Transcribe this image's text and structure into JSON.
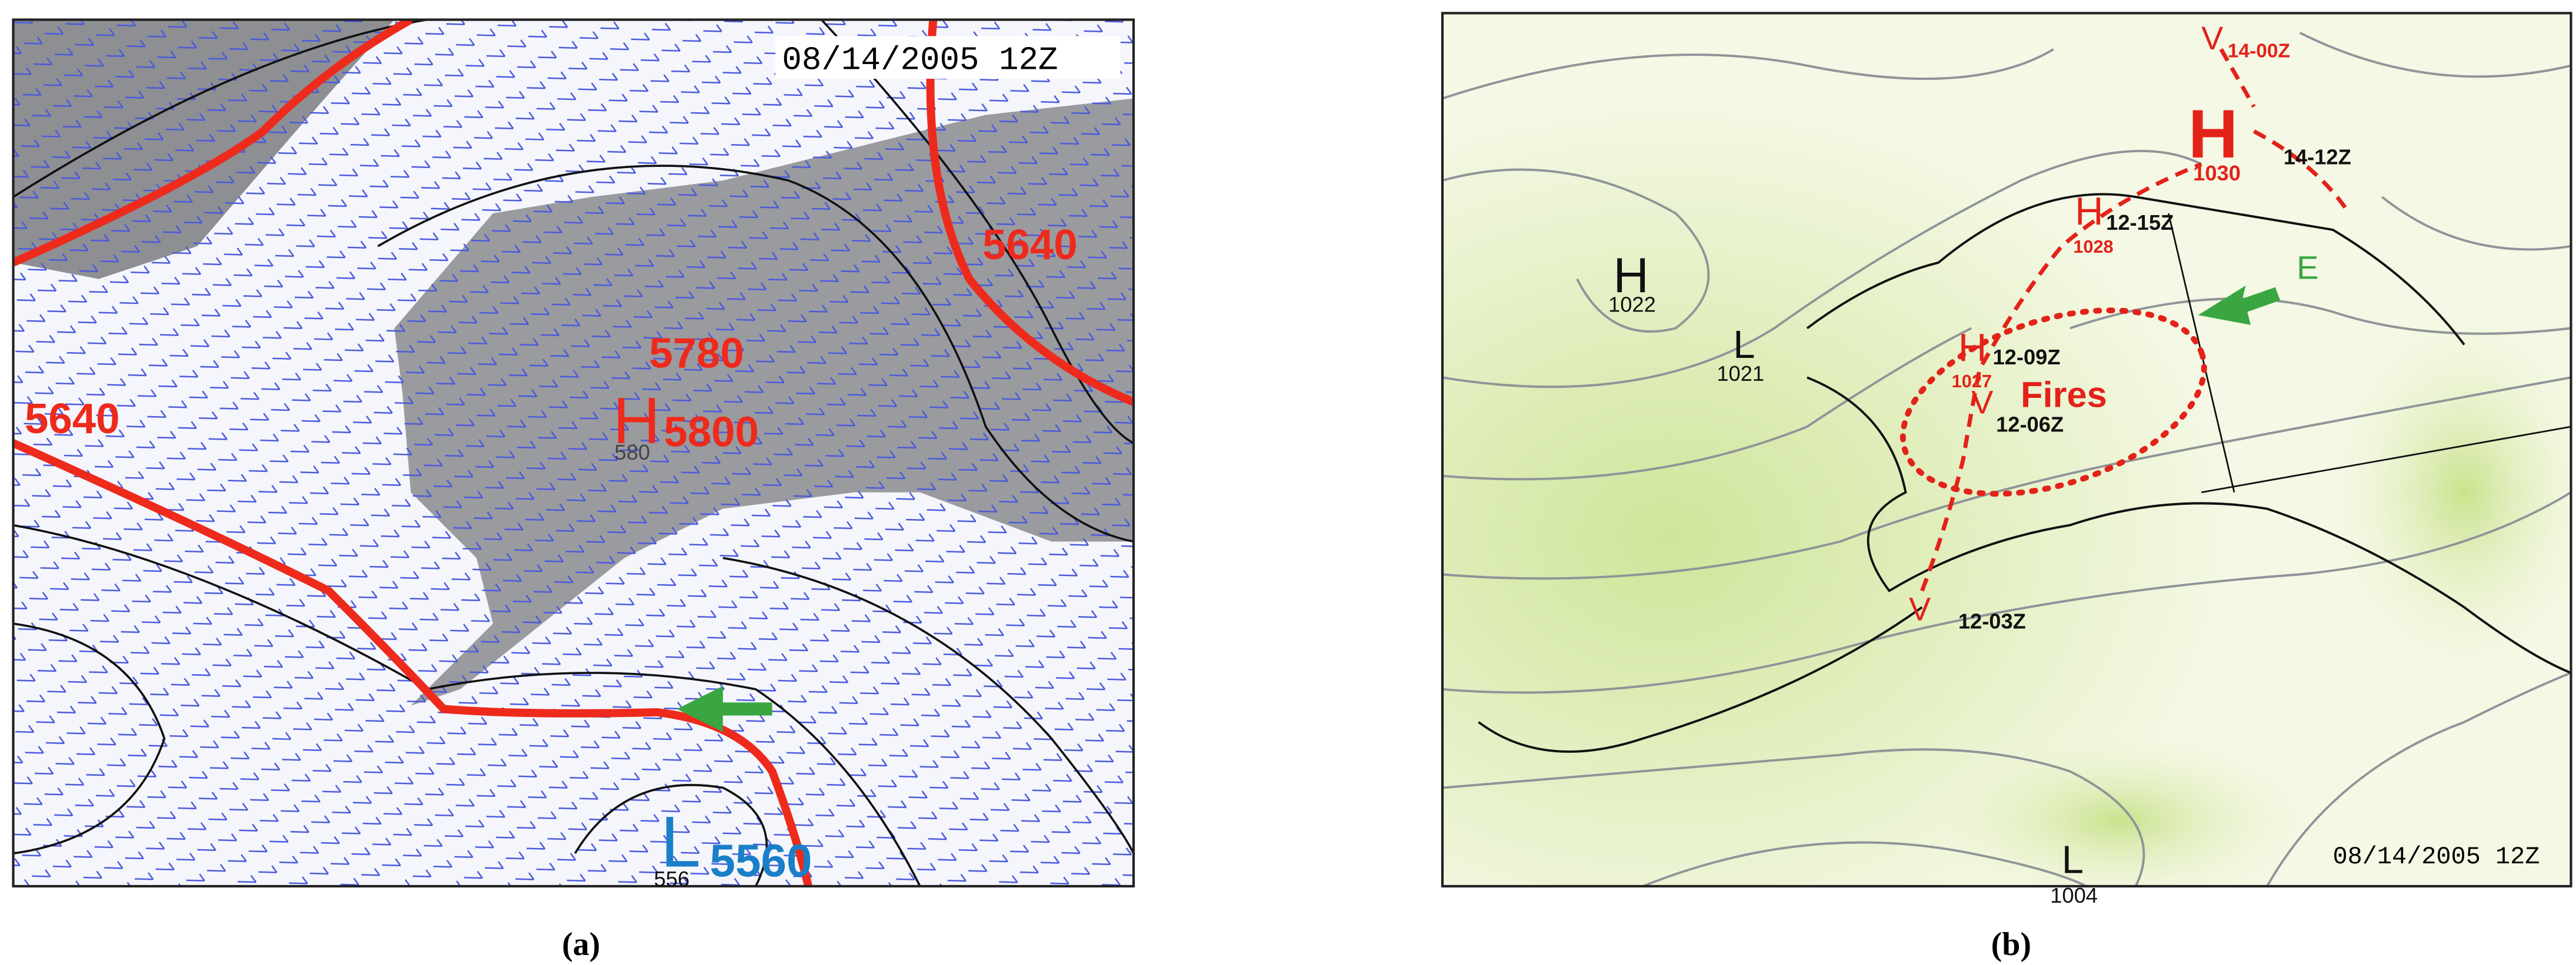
{
  "panel_a": {
    "timestamp": "08/14/2005 12Z",
    "labels": [
      "5640",
      "5640",
      "5780",
      "H",
      "5800",
      "580",
      "L",
      "5560",
      "556"
    ],
    "caption": "(a)"
  },
  "panel_b": {
    "timestamp": "08/14/2005 12Z",
    "labels": [
      "V",
      "14-00Z",
      "H",
      "1030",
      "14-12Z",
      "H",
      "12-15Z",
      "1028",
      "E",
      "H",
      "1022",
      "L",
      "1021",
      "H",
      "12-09Z",
      "1027",
      "V",
      "Fires",
      "12-06Z",
      "V",
      "12-03Z",
      "L",
      "1004"
    ],
    "caption": "(b)"
  }
}
